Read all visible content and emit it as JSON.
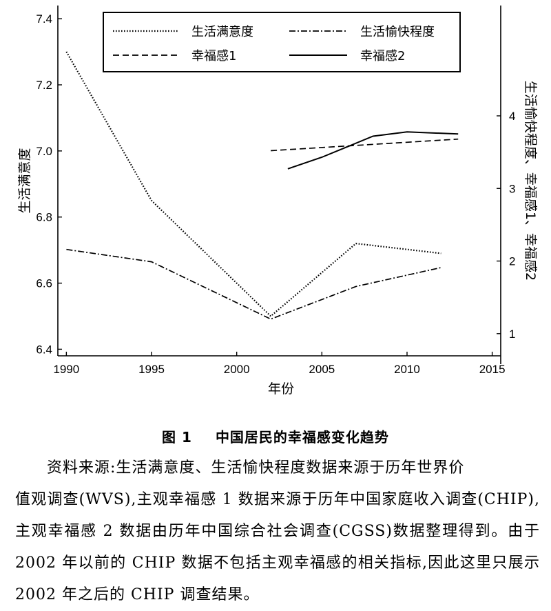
{
  "chart_data": {
    "type": "line",
    "xlabel": "年份",
    "ylabel_left": "生活满意度",
    "ylabel_right": "生活愉快程度、幸福感1、幸福感2",
    "xlim": [
      1989.5,
      2015.5
    ],
    "ylim_left": [
      6.38,
      7.44
    ],
    "ylim_right": [
      0.58,
      5.52
    ],
    "x_ticks": [
      1990,
      1995,
      2000,
      2005,
      2010,
      2015
    ],
    "x_tick_labels": [
      "1990",
      "1995",
      "2000",
      "2005",
      "2010",
      "2015"
    ],
    "y_left_ticks": [
      6.4,
      6.6,
      6.8,
      7.0,
      7.2,
      7.4
    ],
    "y_left_tick_labels": [
      "6.4",
      "6.6",
      "6.8",
      "7.0",
      "7.2",
      "7.4"
    ],
    "y_right_ticks": [
      1,
      2,
      3,
      4
    ],
    "y_right_tick_labels": [
      "1",
      "2",
      "3",
      "4"
    ],
    "legend_position": "top",
    "series": [
      {
        "name": "生活满意度",
        "axis": "left",
        "style": "dotted",
        "x": [
          1990,
          1995,
          2002,
          2007,
          2012
        ],
        "y": [
          7.3,
          6.85,
          6.5,
          6.72,
          6.69
        ]
      },
      {
        "name": "生活愉快程度",
        "axis": "right",
        "style": "dashdot",
        "x": [
          1990,
          1995,
          2002,
          2007,
          2012
        ],
        "y": [
          2.16,
          1.99,
          1.2,
          1.65,
          1.91
        ]
      },
      {
        "name": "幸福感1",
        "axis": "right",
        "style": "dashed",
        "x": [
          2002,
          2013
        ],
        "y": [
          3.52,
          3.68
        ]
      },
      {
        "name": "幸福感2",
        "axis": "right",
        "style": "solid",
        "x": [
          2003,
          2005,
          2008,
          2010,
          2013
        ],
        "y": [
          3.27,
          3.43,
          3.72,
          3.78,
          3.75
        ]
      }
    ]
  },
  "caption": {
    "figure_number": "图 1",
    "title": "中国居民的幸福感变化趋势"
  },
  "source_note": {
    "first_line": "资料来源:生活满意度、生活愉快程度数据来源于历年世界价",
    "rest": "值观调查(WVS),主观幸福感 1 数据来源于历年中国家庭收入调查(CHIP),主观幸福感 2 数据由历年中国综合社会调查(CGSS)数据整理得到。由于 2002 年以前的 CHIP 数据不包括主观幸福感的相关指标,因此这里只展示 2002 年之后的 CHIP 调查结果。"
  }
}
